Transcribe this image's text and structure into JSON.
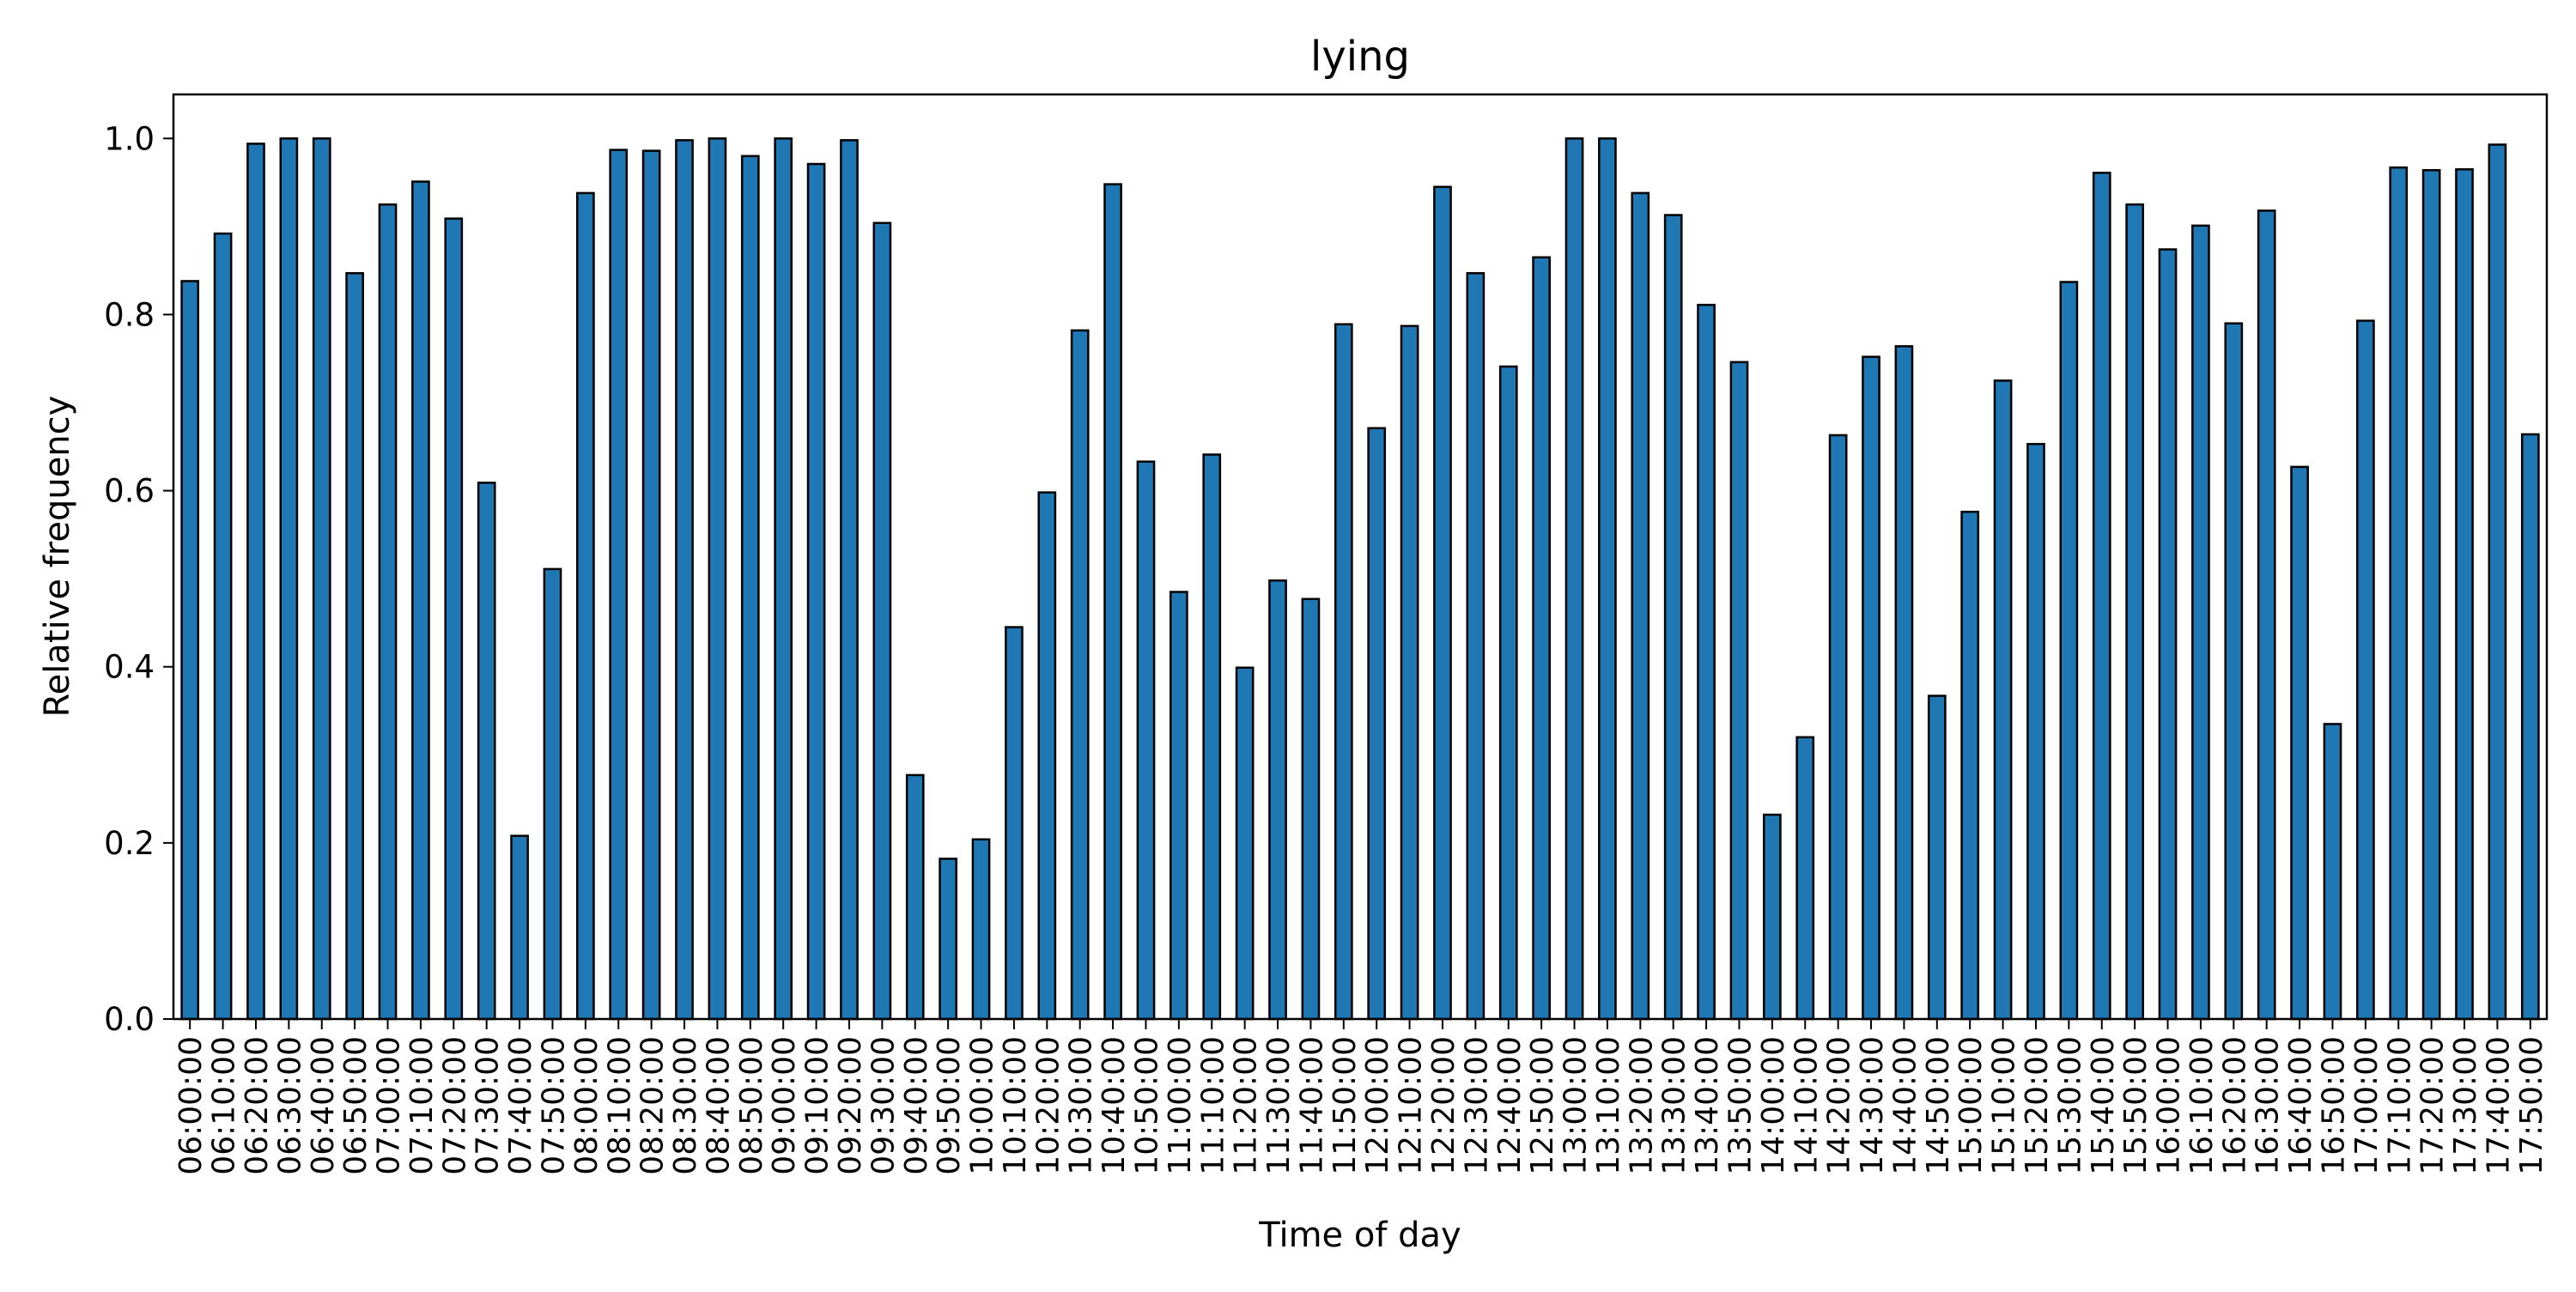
{
  "chart_data": {
    "type": "bar",
    "title": "lying",
    "xlabel": "Time of day",
    "ylabel": "Relative frequency",
    "ylim": [
      0,
      1.05
    ],
    "yticks": [
      "0.0",
      "0.2",
      "0.4",
      "0.6",
      "0.8",
      "1.0"
    ],
    "grid": false,
    "legend": "none",
    "bar_color": "#1f77b4",
    "edge_color": "#000000",
    "categories": [
      "06:00:00",
      "06:10:00",
      "06:20:00",
      "06:30:00",
      "06:40:00",
      "06:50:00",
      "07:00:00",
      "07:10:00",
      "07:20:00",
      "07:30:00",
      "07:40:00",
      "07:50:00",
      "08:00:00",
      "08:10:00",
      "08:20:00",
      "08:30:00",
      "08:40:00",
      "08:50:00",
      "09:00:00",
      "09:10:00",
      "09:20:00",
      "09:30:00",
      "09:40:00",
      "09:50:00",
      "10:00:00",
      "10:10:00",
      "10:20:00",
      "10:30:00",
      "10:40:00",
      "10:50:00",
      "11:00:00",
      "11:10:00",
      "11:20:00",
      "11:30:00",
      "11:40:00",
      "11:50:00",
      "12:00:00",
      "12:10:00",
      "12:20:00",
      "12:30:00",
      "12:40:00",
      "12:50:00",
      "13:00:00",
      "13:10:00",
      "13:20:00",
      "13:30:00",
      "13:40:00",
      "13:50:00",
      "14:00:00",
      "14:10:00",
      "14:20:00",
      "14:30:00",
      "14:40:00",
      "14:50:00",
      "15:00:00",
      "15:10:00",
      "15:20:00",
      "15:30:00",
      "15:40:00",
      "15:50:00",
      "16:00:00",
      "16:10:00",
      "16:20:00",
      "16:30:00",
      "16:40:00",
      "16:50:00",
      "17:00:00",
      "17:10:00",
      "17:20:00",
      "17:30:00",
      "17:40:00",
      "17:50:00"
    ],
    "values": [
      0.838,
      0.892,
      0.994,
      1.0,
      1.0,
      0.847,
      0.925,
      0.951,
      0.909,
      0.609,
      0.208,
      0.511,
      0.938,
      0.987,
      0.986,
      0.998,
      1.0,
      0.98,
      1.0,
      0.971,
      0.998,
      0.904,
      0.277,
      0.182,
      0.204,
      0.445,
      0.598,
      0.782,
      0.948,
      0.633,
      0.485,
      0.641,
      0.399,
      0.498,
      0.477,
      0.789,
      0.671,
      0.787,
      0.945,
      0.847,
      0.741,
      0.865,
      1.0,
      1.0,
      0.938,
      0.913,
      0.811,
      0.746,
      0.232,
      0.32,
      0.663,
      0.752,
      0.764,
      0.367,
      0.576,
      0.725,
      0.653,
      0.837,
      0.961,
      0.925,
      0.874,
      0.901,
      0.79,
      0.918,
      0.627,
      0.335,
      0.793,
      0.967,
      0.964,
      0.965,
      0.993,
      0.664
    ]
  }
}
